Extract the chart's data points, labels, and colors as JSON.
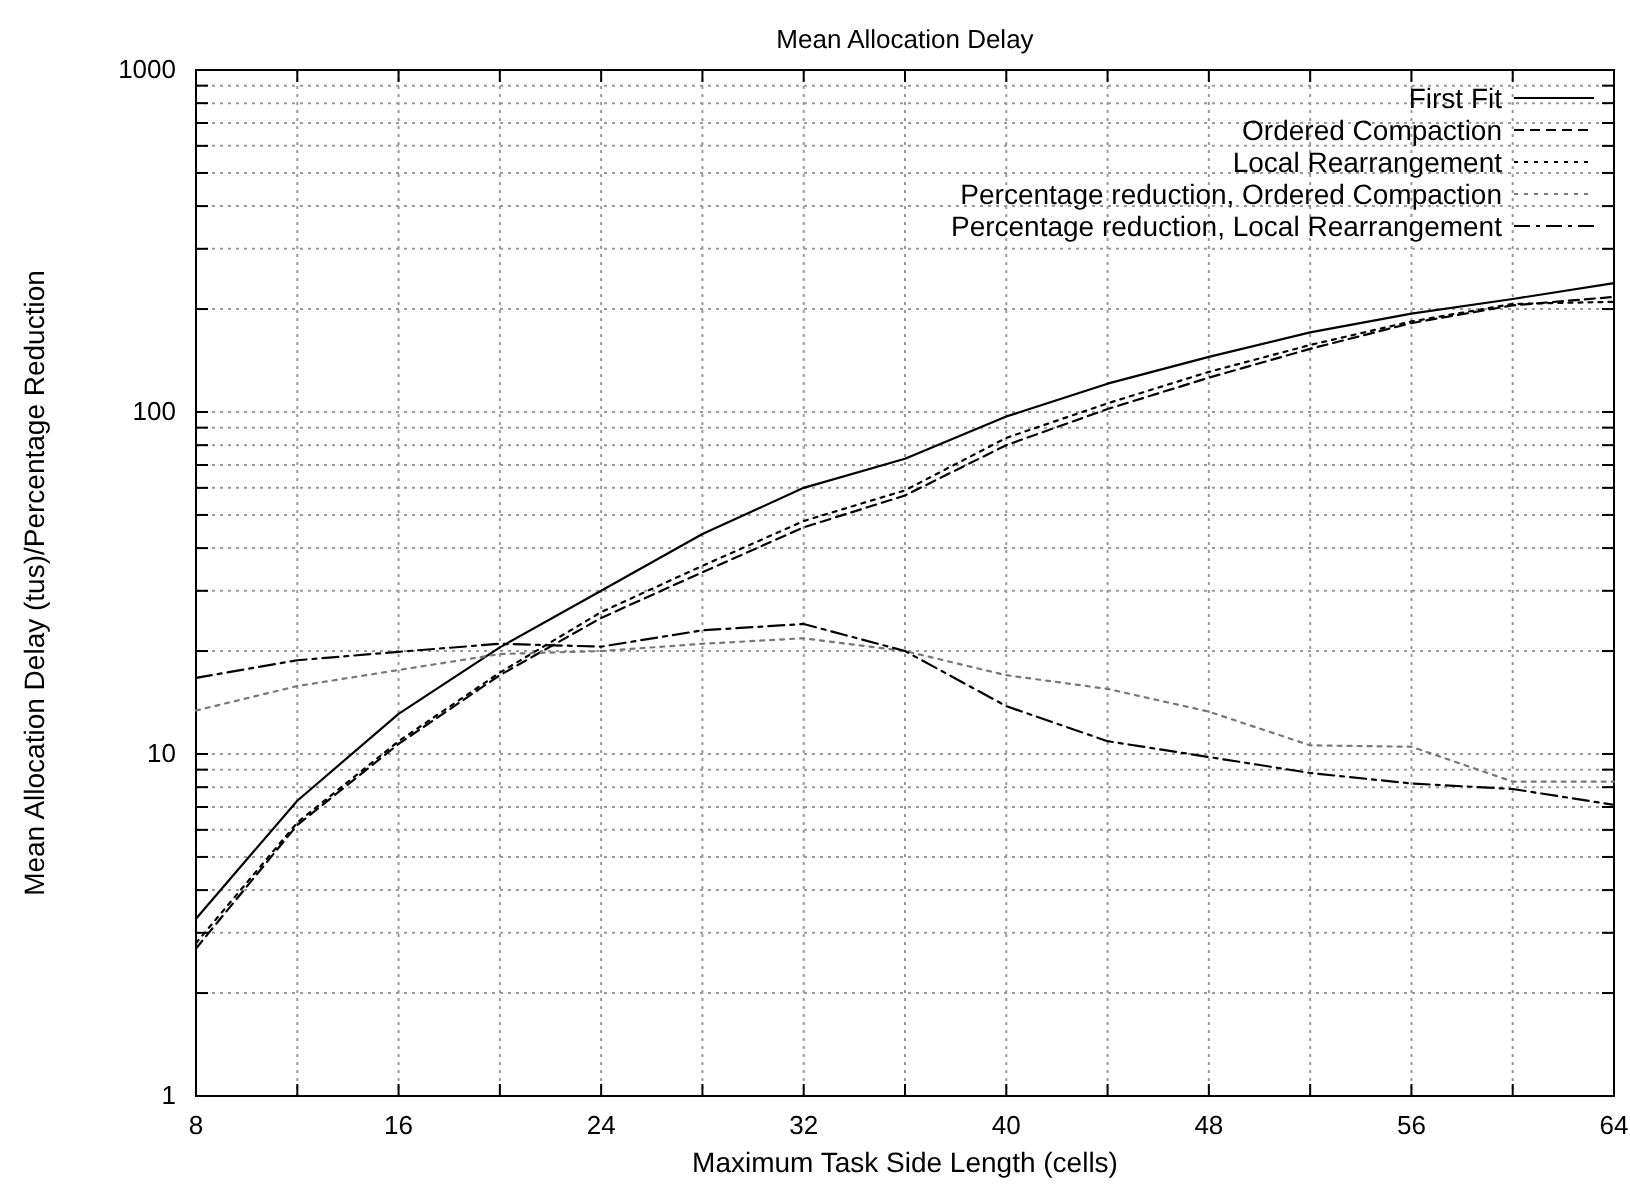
{
  "chart_data": {
    "type": "line",
    "title": "Mean Allocation Delay",
    "xlabel": "Maximum Task Side Length (cells)",
    "ylabel": "Mean Allocation Delay (tus)/Percentage Reduction",
    "x": [
      8,
      12,
      16,
      20,
      24,
      28,
      32,
      36,
      40,
      44,
      48,
      52,
      56,
      60,
      64
    ],
    "series": [
      {
        "name": "First Fit",
        "color": "#000000",
        "line_style": "solid",
        "values": [
          3.3,
          7.3,
          13.1,
          20.5,
          30,
          44,
          60,
          73,
          97,
          121,
          145,
          171,
          194,
          214,
          238
        ]
      },
      {
        "name": "Ordered Compaction",
        "color": "#000000",
        "line_style": "dashed",
        "values": [
          2.7,
          6.2,
          10.7,
          17,
          25,
          34,
          46,
          57,
          80,
          102,
          126,
          153,
          182,
          205,
          217
        ]
      },
      {
        "name": "Local Rearrangement",
        "color": "#000000",
        "line_style": "dotted",
        "values": [
          2.8,
          6.3,
          10.9,
          17.3,
          26,
          35.5,
          48,
          59,
          84,
          106,
          131,
          157,
          184,
          207,
          210
        ]
      },
      {
        "name": "Percentage reduction, Ordered Compaction",
        "color": "#777777",
        "line_style": "dotted",
        "values": [
          13.4,
          15.8,
          17.6,
          19.6,
          20,
          21,
          21.8,
          20,
          17,
          15.5,
          13.3,
          10.6,
          10.5,
          8.3,
          8.3
        ]
      },
      {
        "name": "Percentage reduction, Local Rearrangement",
        "color": "#000000",
        "line_style": "dashdot",
        "values": [
          16.7,
          18.8,
          19.9,
          21,
          20.6,
          23,
          24,
          20,
          13.8,
          10.9,
          9.8,
          8.8,
          8.2,
          7.9,
          7.1
        ]
      }
    ],
    "log": "y",
    "xlim": [
      8,
      64
    ],
    "ylim": [
      1,
      1000
    ],
    "xticks": [
      8,
      {
        "value": 12,
        "label": null
      },
      16,
      {
        "value": 20,
        "label": null
      },
      24,
      {
        "value": 28,
        "label": null
      },
      32,
      {
        "value": 36,
        "label": null
      },
      40,
      {
        "value": 44,
        "label": null
      },
      48,
      {
        "value": 52,
        "label": null
      },
      56,
      {
        "value": 60,
        "label": null
      },
      64
    ],
    "yticks": [
      1,
      {
        "value": 2,
        "label": null
      },
      {
        "value": 3,
        "label": null
      },
      {
        "value": 4,
        "label": null
      },
      {
        "value": 5,
        "label": null
      },
      {
        "value": 6,
        "label": null
      },
      {
        "value": 7,
        "label": null
      },
      {
        "value": 8,
        "label": null
      },
      {
        "value": 9,
        "label": null
      },
      10,
      {
        "value": 20,
        "label": null
      },
      {
        "value": 30,
        "label": null
      },
      {
        "value": 40,
        "label": null
      },
      {
        "value": 50,
        "label": null
      },
      {
        "value": 60,
        "label": null
      },
      {
        "value": 70,
        "label": null
      },
      {
        "value": 80,
        "label": null
      },
      {
        "value": 90,
        "label": null
      },
      100,
      {
        "value": 200,
        "label": null
      },
      {
        "value": 300,
        "label": null
      },
      {
        "value": 400,
        "label": null
      },
      {
        "value": 500,
        "label": null
      },
      {
        "value": 600,
        "label": null
      },
      {
        "value": 700,
        "label": null
      },
      {
        "value": 800,
        "label": null
      },
      {
        "value": 900,
        "label": null
      },
      1000
    ],
    "grid": true,
    "legend": "top right"
  }
}
